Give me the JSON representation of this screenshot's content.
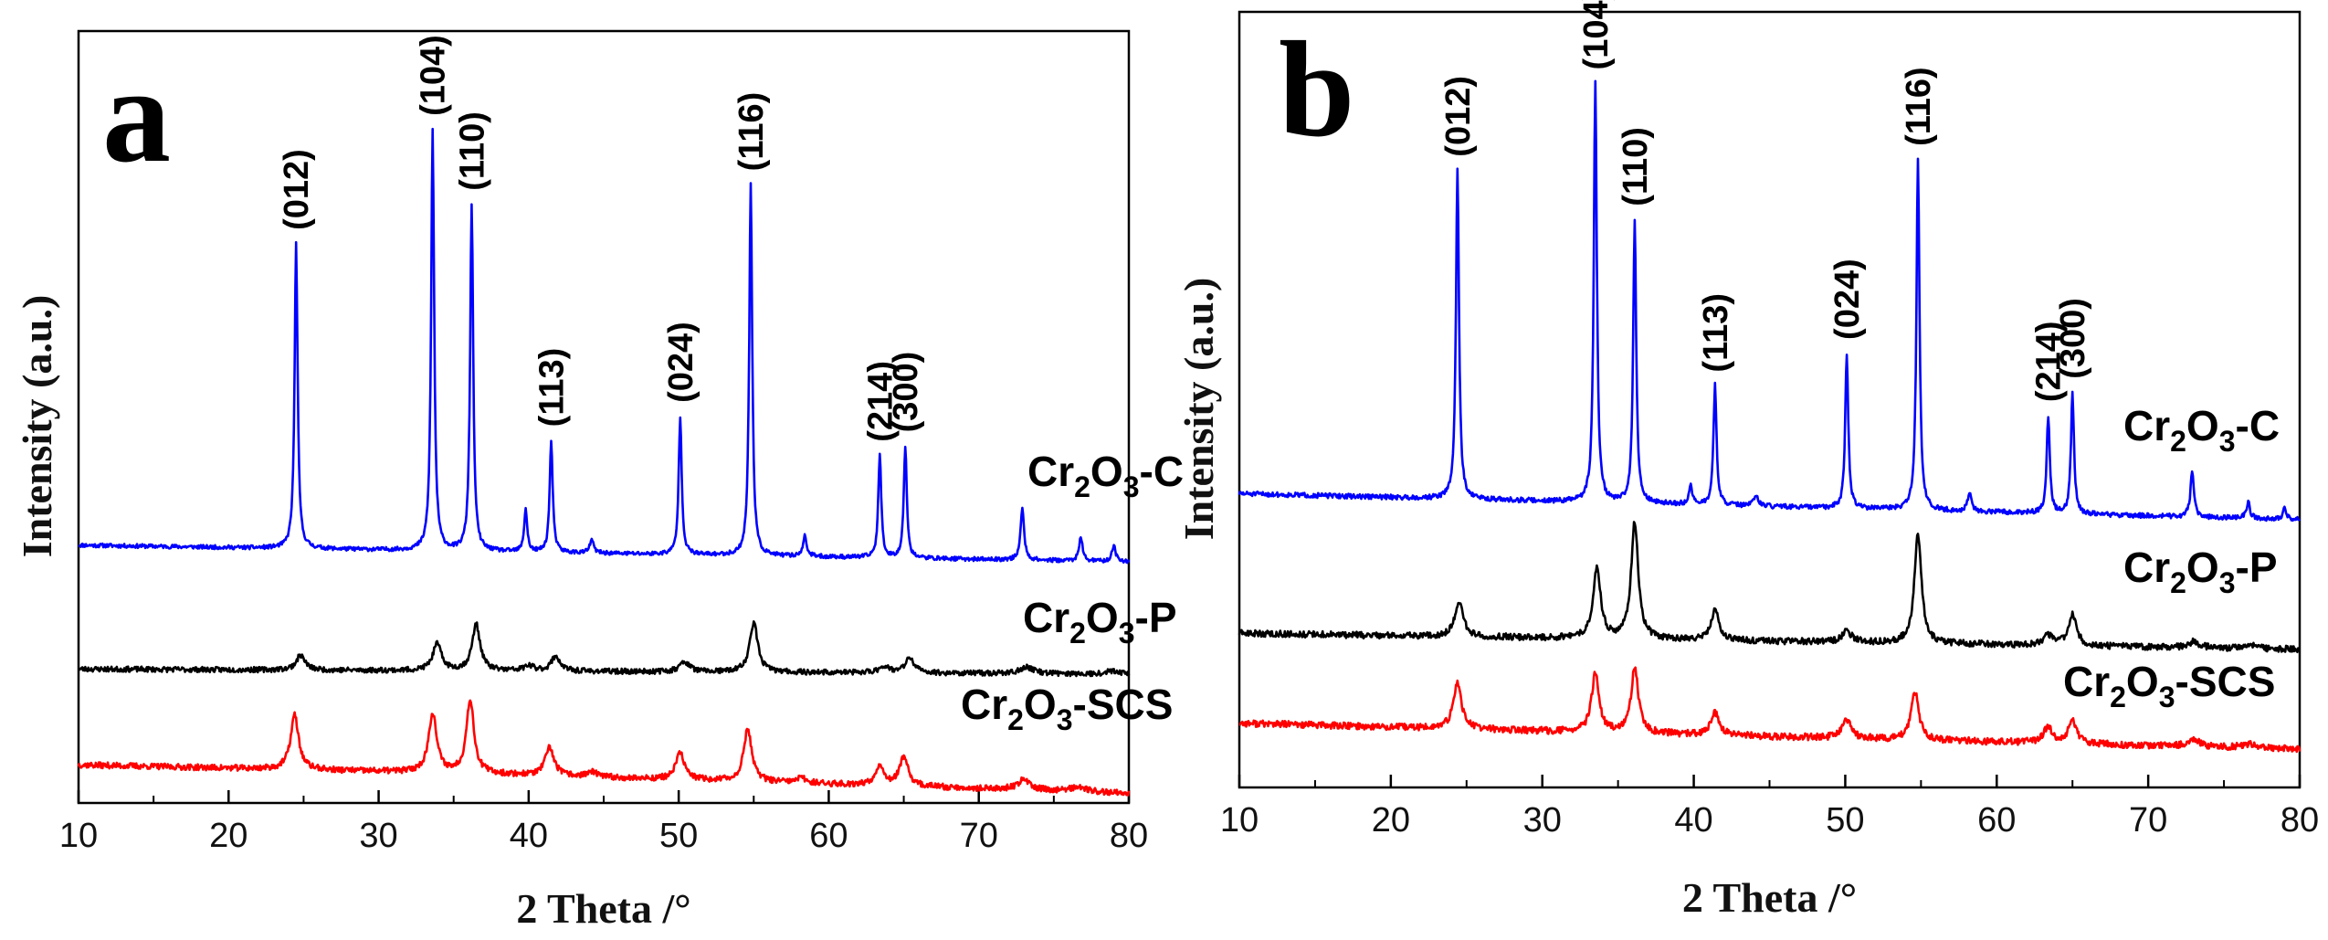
{
  "chart_data": [
    {
      "panel": "a",
      "type": "line",
      "xlabel": "2 Theta /°",
      "ylabel": "Intensity (a.u.)",
      "xlim": [
        10,
        80
      ],
      "xticks": [
        10,
        20,
        30,
        40,
        50,
        60,
        70,
        80
      ],
      "yticks_shown": false,
      "peak_labels": [
        {
          "label": "(012)",
          "x": 24.5,
          "series": "Cr2O3-C"
        },
        {
          "label": "(104)",
          "x": 33.6,
          "series": "Cr2O3-C"
        },
        {
          "label": "(110)",
          "x": 36.2,
          "series": "Cr2O3-C"
        },
        {
          "label": "(113)",
          "x": 41.5,
          "series": "Cr2O3-C"
        },
        {
          "label": "(024)",
          "x": 50.1,
          "series": "Cr2O3-C"
        },
        {
          "label": "(116)",
          "x": 54.8,
          "series": "Cr2O3-C"
        },
        {
          "label": "(214)",
          "x": 63.4,
          "series": "Cr2O3-C"
        },
        {
          "label": "(300)",
          "x": 65.1,
          "series": "Cr2O3-C"
        }
      ],
      "series": [
        {
          "name": "Cr2O3-C",
          "label_main": "Cr",
          "label_sub1": "2",
          "label_mid": "O",
          "label_sub2": "3",
          "label_tail": "-C",
          "color": "#0000ff",
          "baseline": [
            [
              10,
              30
            ],
            [
              80,
              20
            ]
          ],
          "noise": 1.2,
          "seed": 11,
          "peaks": [
            [
              24.5,
              185,
              0.12
            ],
            [
              33.6,
              255,
              0.12
            ],
            [
              36.2,
              210,
              0.12
            ],
            [
              39.8,
              26,
              0.12
            ],
            [
              41.5,
              68,
              0.12
            ],
            [
              44.2,
              8,
              0.15
            ],
            [
              50.1,
              84,
              0.12
            ],
            [
              54.8,
              225,
              0.12
            ],
            [
              58.4,
              12,
              0.15
            ],
            [
              63.4,
              62,
              0.12
            ],
            [
              65.1,
              68,
              0.12
            ],
            [
              72.9,
              31,
              0.14
            ],
            [
              76.8,
              14,
              0.14
            ],
            [
              79.0,
              10,
              0.14
            ]
          ]
        },
        {
          "name": "Cr2O3-P",
          "label_main": "Cr",
          "label_sub1": "2",
          "label_mid": "O",
          "label_sub2": "3",
          "label_tail": "-P",
          "color": "#000000",
          "baseline": [
            [
              10,
              -45
            ],
            [
              80,
              -48
            ]
          ],
          "noise": 1.6,
          "seed": 23,
          "peaks": [
            [
              24.8,
              9,
              0.35
            ],
            [
              33.9,
              16,
              0.35
            ],
            [
              36.5,
              28,
              0.32
            ],
            [
              40.0,
              3,
              0.4
            ],
            [
              41.8,
              9,
              0.35
            ],
            [
              50.4,
              6,
              0.4
            ],
            [
              55.0,
              30,
              0.32
            ],
            [
              63.7,
              4,
              0.4
            ],
            [
              65.4,
              9,
              0.35
            ],
            [
              73.2,
              4,
              0.5
            ],
            [
              79.0,
              2,
              0.5
            ]
          ]
        },
        {
          "name": "Cr2O3-SCS",
          "label_main": "Cr",
          "label_sub1": "2",
          "label_mid": "O",
          "label_sub2": "3",
          "label_tail": "-SCS",
          "color": "#ff0000",
          "baseline": [
            [
              10,
              -103
            ],
            [
              35,
              -108
            ],
            [
              80,
              -120
            ]
          ],
          "noise": 1.8,
          "seed": 37,
          "peaks": [
            [
              24.4,
              33,
              0.32
            ],
            [
              33.6,
              36,
              0.32
            ],
            [
              36.1,
              45,
              0.3
            ],
            [
              41.4,
              17,
              0.35
            ],
            [
              44.2,
              3,
              0.4
            ],
            [
              50.1,
              16,
              0.35
            ],
            [
              54.6,
              32,
              0.32
            ],
            [
              58.2,
              3,
              0.4
            ],
            [
              63.4,
              12,
              0.35
            ],
            [
              65.0,
              17,
              0.35
            ],
            [
              73.0,
              6,
              0.5
            ],
            [
              76.6,
              3,
              0.5
            ]
          ]
        }
      ]
    },
    {
      "panel": "b",
      "type": "line",
      "xlabel": "2 Theta /°",
      "ylabel": "Intensity (a.u.)",
      "xlim": [
        10,
        80
      ],
      "xticks": [
        10,
        20,
        30,
        40,
        50,
        60,
        70,
        80
      ],
      "yticks_shown": false,
      "peak_labels": [
        {
          "label": "(012)",
          "x": 24.4,
          "series": "Cr2O3-C"
        },
        {
          "label": "(104)",
          "x": 33.5,
          "series": "Cr2O3-C"
        },
        {
          "label": "(110)",
          "x": 36.1,
          "series": "Cr2O3-C"
        },
        {
          "label": "(113)",
          "x": 41.4,
          "series": "Cr2O3-C"
        },
        {
          "label": "(024)",
          "x": 50.1,
          "series": "Cr2O3-C"
        },
        {
          "label": "(116)",
          "x": 54.8,
          "series": "Cr2O3-C"
        },
        {
          "label": "(214)",
          "x": 63.4,
          "series": "Cr2O3-C"
        },
        {
          "label": "(300)",
          "x": 65.0,
          "series": "Cr2O3-C"
        }
      ],
      "series": [
        {
          "name": "Cr2O3-C",
          "label_main": "Cr",
          "label_sub1": "2",
          "label_mid": "O",
          "label_sub2": "3",
          "label_tail": "-C",
          "color": "#0000ff",
          "baseline": [
            [
              10,
              45
            ],
            [
              80,
              32
            ]
          ],
          "noise": 1.2,
          "seed": 51,
          "peaks": [
            [
              24.4,
              165,
              0.12
            ],
            [
              33.5,
              210,
              0.12
            ],
            [
              36.1,
              142,
              0.12
            ],
            [
              39.8,
              10,
              0.12
            ],
            [
              41.4,
              60,
              0.12
            ],
            [
              44.1,
              6,
              0.15
            ],
            [
              50.1,
              78,
              0.12
            ],
            [
              54.8,
              176,
              0.12
            ],
            [
              58.2,
              9,
              0.15
            ],
            [
              63.4,
              49,
              0.12
            ],
            [
              65.0,
              61,
              0.12
            ],
            [
              72.9,
              22,
              0.14
            ],
            [
              76.6,
              8,
              0.14
            ],
            [
              79.0,
              5,
              0.14
            ]
          ]
        },
        {
          "name": "Cr2O3-P",
          "label_main": "Cr",
          "label_sub1": "2",
          "label_mid": "O",
          "label_sub2": "3",
          "label_tail": "-P",
          "color": "#000000",
          "baseline": [
            [
              10,
              -25
            ],
            [
              80,
              -33
            ]
          ],
          "noise": 1.6,
          "seed": 63,
          "peaks": [
            [
              24.5,
              18,
              0.32
            ],
            [
              33.6,
              35,
              0.3
            ],
            [
              36.1,
              59,
              0.28
            ],
            [
              41.4,
              15,
              0.32
            ],
            [
              50.1,
              6,
              0.35
            ],
            [
              54.8,
              55,
              0.28
            ],
            [
              63.4,
              5,
              0.35
            ],
            [
              65.0,
              16,
              0.32
            ],
            [
              73.0,
              3,
              0.45
            ],
            [
              76.6,
              2,
              0.45
            ]
          ]
        },
        {
          "name": "Cr2O3-SCS",
          "label_main": "Cr",
          "label_sub1": "2",
          "label_mid": "O",
          "label_sub2": "3",
          "label_tail": "-SCS",
          "color": "#ff0000",
          "baseline": [
            [
              10,
              -70
            ],
            [
              30,
              -74
            ],
            [
              80,
              -83
            ]
          ],
          "noise": 1.7,
          "seed": 77,
          "peaks": [
            [
              24.4,
              23,
              0.32
            ],
            [
              33.5,
              29,
              0.3
            ],
            [
              36.1,
              33,
              0.28
            ],
            [
              41.4,
              11,
              0.32
            ],
            [
              50.1,
              9,
              0.35
            ],
            [
              54.6,
              24,
              0.3
            ],
            [
              63.4,
              8,
              0.35
            ],
            [
              65.0,
              12,
              0.32
            ],
            [
              73.0,
              4,
              0.45
            ],
            [
              76.6,
              2,
              0.45
            ]
          ]
        }
      ]
    }
  ]
}
